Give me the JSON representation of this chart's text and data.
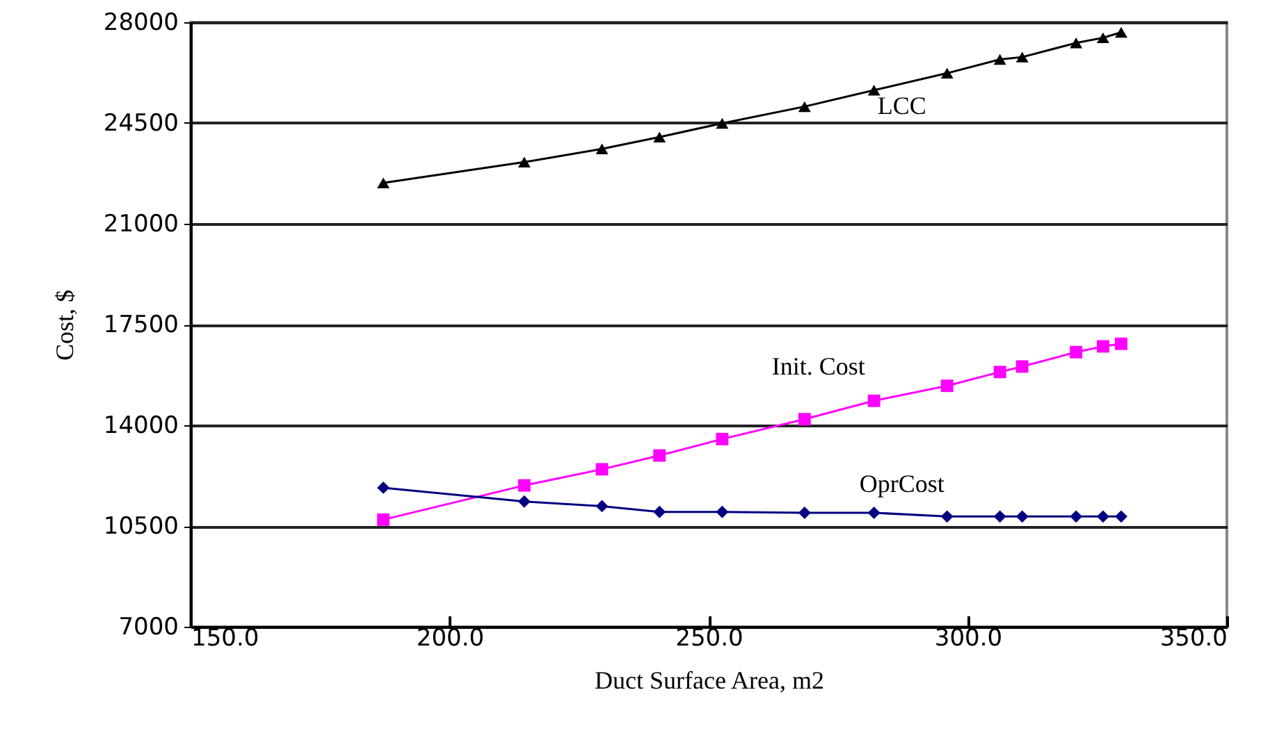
{
  "chart_data": {
    "type": "line",
    "xlabel": "Duct Surface Area, m2",
    "ylabel": "Cost, $",
    "x": [
      187.2,
      214.4,
      229.4,
      240.5,
      252.6,
      268.5,
      281.9,
      296.0,
      306.2,
      310.5,
      320.9,
      326.1,
      329.6
    ],
    "series": [
      {
        "name": "LCC",
        "color": "#000000",
        "marker": "triangle",
        "values": [
          22420,
          23140,
          23600,
          24010,
          24490,
          25070,
          25640,
          26230,
          26710,
          26790,
          27280,
          27460,
          27650
        ]
      },
      {
        "name": "Init. Cost",
        "color": "#ff00ff",
        "marker": "square",
        "values": [
          10720,
          11910,
          12470,
          12950,
          13520,
          14210,
          14850,
          15370,
          15850,
          16040,
          16540,
          16740,
          16830
        ]
      },
      {
        "name": "OprCost",
        "color": "#000080",
        "marker": "diamond",
        "values": [
          11830,
          11350,
          11190,
          10990,
          10990,
          10960,
          10960,
          10830,
          10830,
          10830,
          10830,
          10830,
          10830
        ]
      }
    ],
    "xlim": [
      150,
      350
    ],
    "xticks": [
      {
        "value": 150,
        "label": "150.0"
      },
      {
        "value": 200,
        "label": "200.0"
      },
      {
        "value": 250,
        "label": "250.0"
      },
      {
        "value": 300,
        "label": "300.0"
      },
      {
        "value": 350,
        "label": "350.0"
      }
    ],
    "ylim": [
      7000,
      28000
    ],
    "yticks": [
      7000,
      10500,
      14000,
      17500,
      21000,
      24500,
      28000
    ],
    "grid": "y",
    "line_style": "solid"
  }
}
